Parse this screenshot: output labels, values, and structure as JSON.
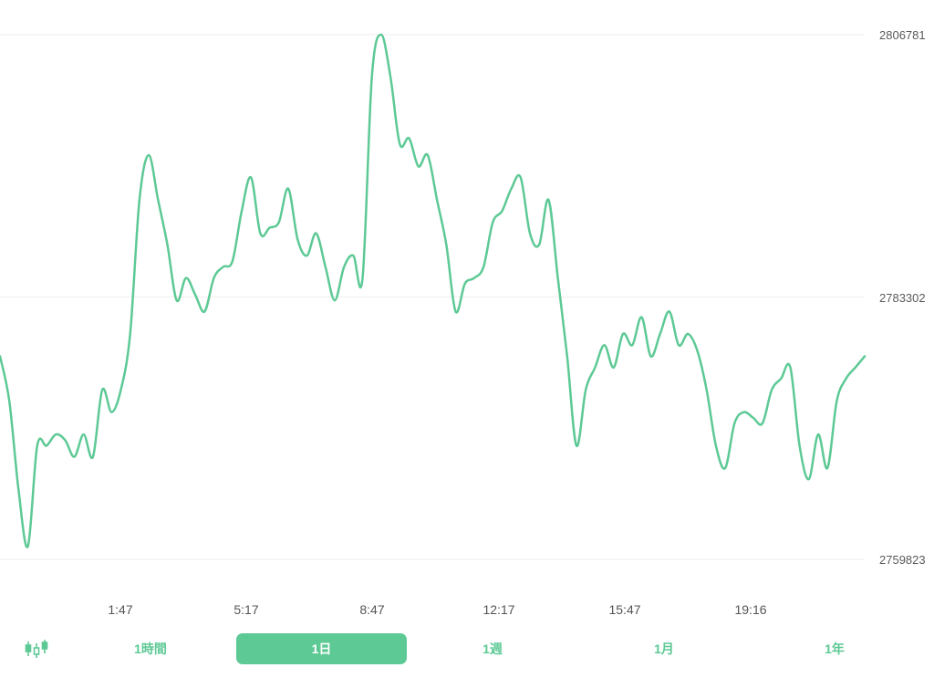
{
  "colors": {
    "line": "#5dc995",
    "grid": "#eeeeee",
    "accent": "#5dc995"
  },
  "chart_data": {
    "type": "line",
    "y_ticks": [
      "2806781",
      "2783302",
      "2759823"
    ],
    "ylim": [
      2759823,
      2806781
    ],
    "x_ticks": [
      "1:47",
      "5:17",
      "8:47",
      "12:17",
      "15:47",
      "19:16"
    ],
    "grid": true,
    "series": [
      {
        "values": [
          2778000,
          2774000,
          2766000,
          2761000,
          2770000,
          2770000,
          2771000,
          2770500,
          2769000,
          2771000,
          2769000,
          2775000,
          2773000,
          2775000,
          2780000,
          2792000,
          2796000,
          2792000,
          2788000,
          2783000,
          2785000,
          2783500,
          2782000,
          2785000,
          2786000,
          2786500,
          2791000,
          2794000,
          2789000,
          2789500,
          2790000,
          2793000,
          2788500,
          2787000,
          2789000,
          2786000,
          2783000,
          2786000,
          2787000,
          2785000,
          2803000,
          2806781,
          2803000,
          2797000,
          2797500,
          2795000,
          2796000,
          2792000,
          2788000,
          2782000,
          2784500,
          2785000,
          2786000,
          2790000,
          2791000,
          2793000,
          2794000,
          2789000,
          2788000,
          2792000,
          2785000,
          2778000,
          2770000,
          2775000,
          2777000,
          2779000,
          2777000,
          2780000,
          2779000,
          2781500,
          2778000,
          2780000,
          2782000,
          2779000,
          2780000,
          2778500,
          2775000,
          2770000,
          2768000,
          2772000,
          2773000,
          2772500,
          2772000,
          2775000,
          2776000,
          2777000,
          2770000,
          2767000,
          2771000,
          2768000,
          2774000,
          2776000,
          2777000,
          2778000
        ],
        "name": ""
      }
    ]
  },
  "timeframes": {
    "candle_icon": "candlestick-icon",
    "items": [
      "1時間",
      "1日",
      "1週",
      "1月",
      "1年"
    ],
    "active_index": 1
  }
}
